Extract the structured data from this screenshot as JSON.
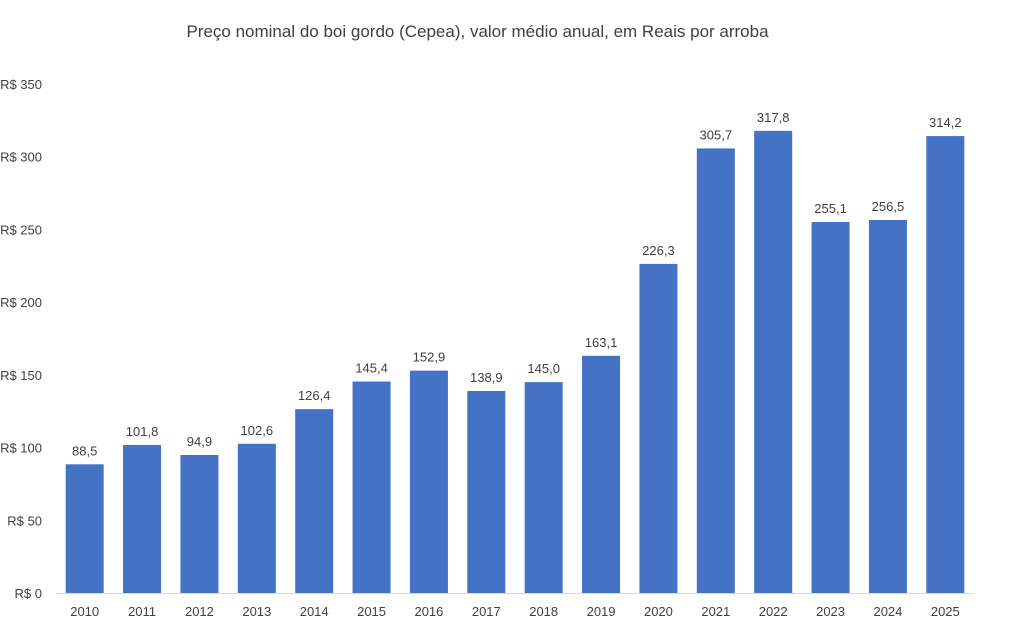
{
  "chart_data": {
    "type": "bar",
    "title": "Preço nominal do boi gordo (Cepea), valor médio anual, em Reais por arroba",
    "xlabel": "",
    "ylabel": "",
    "categories": [
      "2010",
      "2011",
      "2012",
      "2013",
      "2014",
      "2015",
      "2016",
      "2017",
      "2018",
      "2019",
      "2020",
      "2021",
      "2022",
      "2023",
      "2024",
      "2025"
    ],
    "values": [
      88.5,
      101.8,
      94.9,
      102.6,
      126.4,
      145.4,
      152.9,
      138.9,
      145.0,
      163.1,
      226.3,
      305.7,
      317.8,
      255.1,
      256.5,
      314.2
    ],
    "data_labels": [
      "88,5",
      "101,8",
      "94,9",
      "102,6",
      "126,4",
      "145,4",
      "152,9",
      "138,9",
      "145,0",
      "163,1",
      "226,3",
      "305,7",
      "317,8",
      "255,1",
      "256,5",
      "314,2"
    ],
    "ylim": [
      0,
      350
    ],
    "y_ticks": [
      0,
      50,
      100,
      150,
      200,
      250,
      300,
      350
    ],
    "y_tick_labels": [
      "R$ 0",
      "R$ 50",
      "R$ 100",
      "R$ 150",
      "R$ 200",
      "R$ 250",
      "R$ 300",
      "R$ 350"
    ],
    "grid": false,
    "legend": "none",
    "bar_color": "#4472C4",
    "label_color": "#404040",
    "axis_color": "#D9D9D9"
  }
}
